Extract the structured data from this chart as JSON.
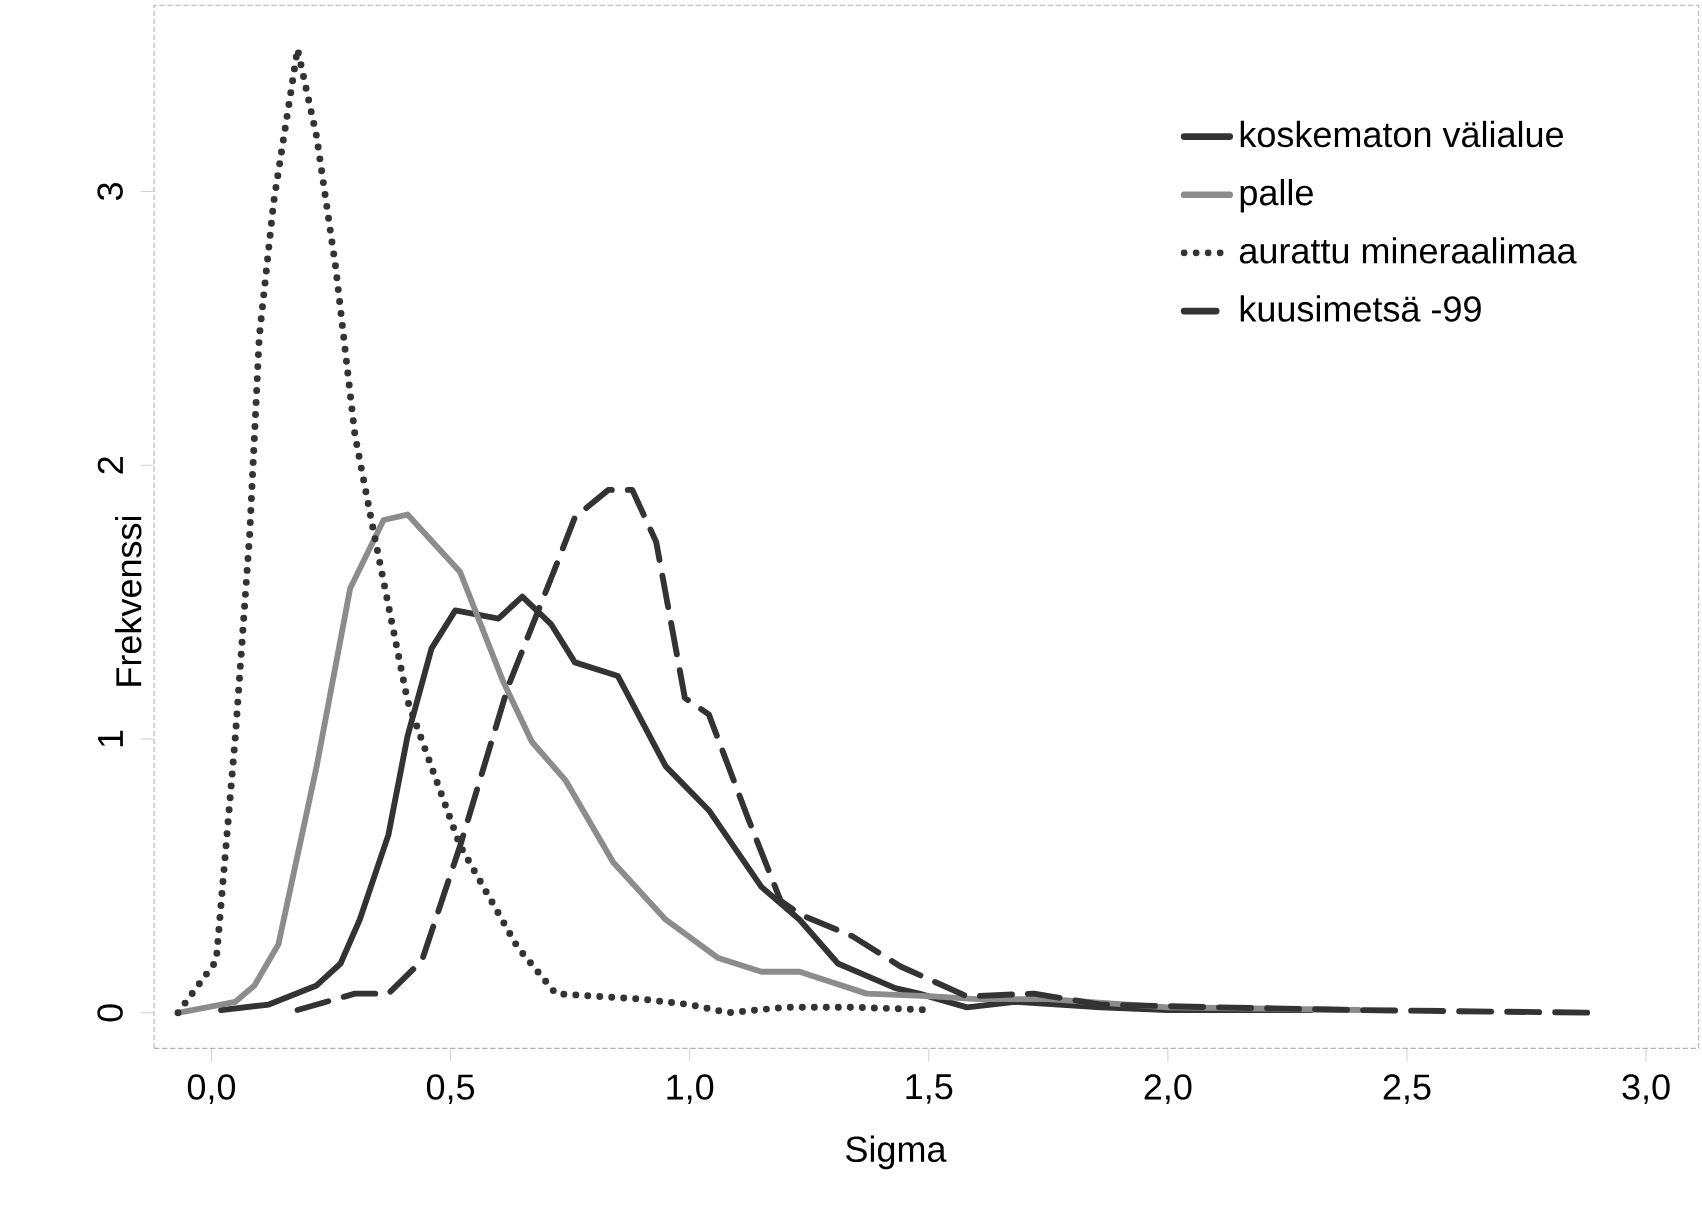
{
  "chart_data": {
    "type": "line",
    "xlabel": "Sigma",
    "ylabel": "Frekvenssi",
    "xlim": [
      -0.12,
      3.11
    ],
    "ylim": [
      -0.13,
      3.68
    ],
    "xticks": [
      {
        "value": 0,
        "label": "0,0"
      },
      {
        "value": 0.5,
        "label": "0,5"
      },
      {
        "value": 1,
        "label": "1,0"
      },
      {
        "value": 1.5,
        "label": "1,5"
      },
      {
        "value": 2,
        "label": "2,0"
      },
      {
        "value": 2.5,
        "label": "2,5"
      },
      {
        "value": 3,
        "label": "3,0"
      }
    ],
    "yticks": [
      0,
      1,
      2,
      3
    ],
    "grid": false,
    "legend": "top right",
    "series": [
      {
        "name": "koskematon välialue",
        "color": "#333333",
        "line_style": "solid",
        "x": [
          0.02,
          0.12,
          0.22,
          0.27,
          0.31,
          0.37,
          0.41,
          0.46,
          0.51,
          0.6,
          0.65,
          0.71,
          0.76,
          0.85,
          0.95,
          1.04,
          1.15,
          1.23,
          1.31,
          1.43,
          1.48,
          1.58,
          1.68,
          1.86,
          2.0,
          2.3
        ],
        "values": [
          0.01,
          0.03,
          0.1,
          0.18,
          0.34,
          0.65,
          1.01,
          1.33,
          1.47,
          1.44,
          1.52,
          1.42,
          1.28,
          1.23,
          0.9,
          0.74,
          0.46,
          0.34,
          0.18,
          0.09,
          0.07,
          0.02,
          0.04,
          0.02,
          0.01,
          0.01
        ]
      },
      {
        "name": "palle",
        "color": "#8c8c8c",
        "line_style": "solid",
        "x": [
          -0.07,
          0.05,
          0.09,
          0.14,
          0.22,
          0.29,
          0.36,
          0.41,
          0.52,
          0.61,
          0.67,
          0.74,
          0.84,
          0.95,
          1.06,
          1.15,
          1.23,
          1.37,
          1.51,
          1.6,
          1.75,
          2.0,
          2.4
        ],
        "values": [
          0,
          0.04,
          0.1,
          0.25,
          0.9,
          1.55,
          1.8,
          1.82,
          1.61,
          1.21,
          0.99,
          0.85,
          0.55,
          0.34,
          0.2,
          0.15,
          0.15,
          0.07,
          0.06,
          0.05,
          0.05,
          0.02,
          0.01
        ]
      },
      {
        "name": "aurattu mineraalimaa",
        "color": "#333333",
        "line_style": "dotted",
        "x": [
          -0.07,
          0.01,
          0.05,
          0.08,
          0.1,
          0.13,
          0.18,
          0.22,
          0.26,
          0.3,
          0.34,
          0.41,
          0.52,
          0.64,
          0.72,
          0.9,
          1.0,
          1.08,
          1.2,
          1.35,
          1.51
        ],
        "values": [
          0,
          0.19,
          1.01,
          1.75,
          2.47,
          2.96,
          3.52,
          3.2,
          2.72,
          2.11,
          1.75,
          1.14,
          0.61,
          0.24,
          0.07,
          0.05,
          0.03,
          0,
          0.02,
          0.02,
          0.01
        ]
      },
      {
        "name": "kuusimetsä -99",
        "color": "#333333",
        "line_style": "dashed",
        "x": [
          0.18,
          0.3,
          0.37,
          0.44,
          0.52,
          0.62,
          0.72,
          0.76,
          0.83,
          0.88,
          0.93,
          0.99,
          1.04,
          1.12,
          1.19,
          1.23,
          1.34,
          1.44,
          1.58,
          1.72,
          1.86,
          2.1,
          2.4,
          2.9
        ],
        "values": [
          0.01,
          0.07,
          0.07,
          0.19,
          0.61,
          1.19,
          1.63,
          1.81,
          1.91,
          1.91,
          1.72,
          1.15,
          1.09,
          0.72,
          0.41,
          0.36,
          0.28,
          0.17,
          0.06,
          0.07,
          0.03,
          0.02,
          0.01,
          0
        ]
      }
    ]
  }
}
